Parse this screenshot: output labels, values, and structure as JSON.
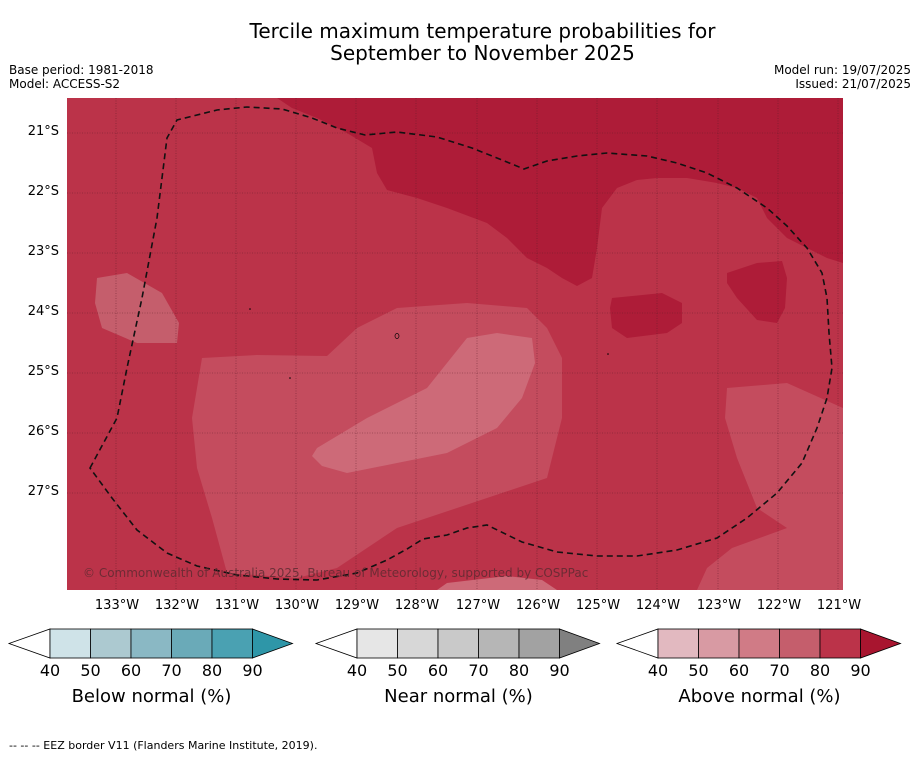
{
  "title_line1": "Tercile maximum temperature probabilities for",
  "title_line2": "September to November 2025",
  "base_period": "Base period: 1981-2018",
  "model": "Model: ACCESS-S2",
  "model_run": "Model run: 19/07/2025",
  "issued": "Issued: 21/07/2025",
  "lat_labels": [
    "21°S",
    "22°S",
    "23°S",
    "24°S",
    "25°S",
    "26°S",
    "27°S"
  ],
  "lon_labels": [
    "133°W",
    "132°W",
    "131°W",
    "130°W",
    "129°W",
    "128°W",
    "127°W",
    "126°W",
    "125°W",
    "124°W",
    "123°W",
    "122°W",
    "121°W"
  ],
  "copyright": "© Commonwealth of Australia 2025, Bureau of Meteorology, supported by COSPPac",
  "colorbars": [
    {
      "title": "Below normal (%)",
      "ticks": [
        "40",
        "50",
        "60",
        "70",
        "80",
        "90"
      ],
      "colors": [
        "#ffffff",
        "#cfe3e8",
        "#acc9d0",
        "#8ab8c4",
        "#6aaab8",
        "#4aa1b2",
        "#2e96a8"
      ]
    },
    {
      "title": "Near normal (%)",
      "ticks": [
        "40",
        "50",
        "60",
        "70",
        "80",
        "90"
      ],
      "colors": [
        "#ffffff",
        "#e6e6e6",
        "#d7d7d7",
        "#c9c9c9",
        "#b6b6b6",
        "#a2a2a2",
        "#808080"
      ]
    },
    {
      "title": "Above normal (%)",
      "ticks": [
        "40",
        "50",
        "60",
        "70",
        "80",
        "90"
      ],
      "colors": [
        "#ffffff",
        "#e2b9c0",
        "#d89aa3",
        "#d07b86",
        "#c55e6c",
        "#bb3349",
        "#a8152f"
      ]
    }
  ],
  "footnote": "--  --  -- EEZ border V11 (Flanders Marine Institute, 2019).",
  "map_colors": {
    "above_70_80": "#c55e6c",
    "above_80_90": "#bb3349",
    "above_90": "#ae1c38",
    "above_60_70": "#cd6a78"
  }
}
